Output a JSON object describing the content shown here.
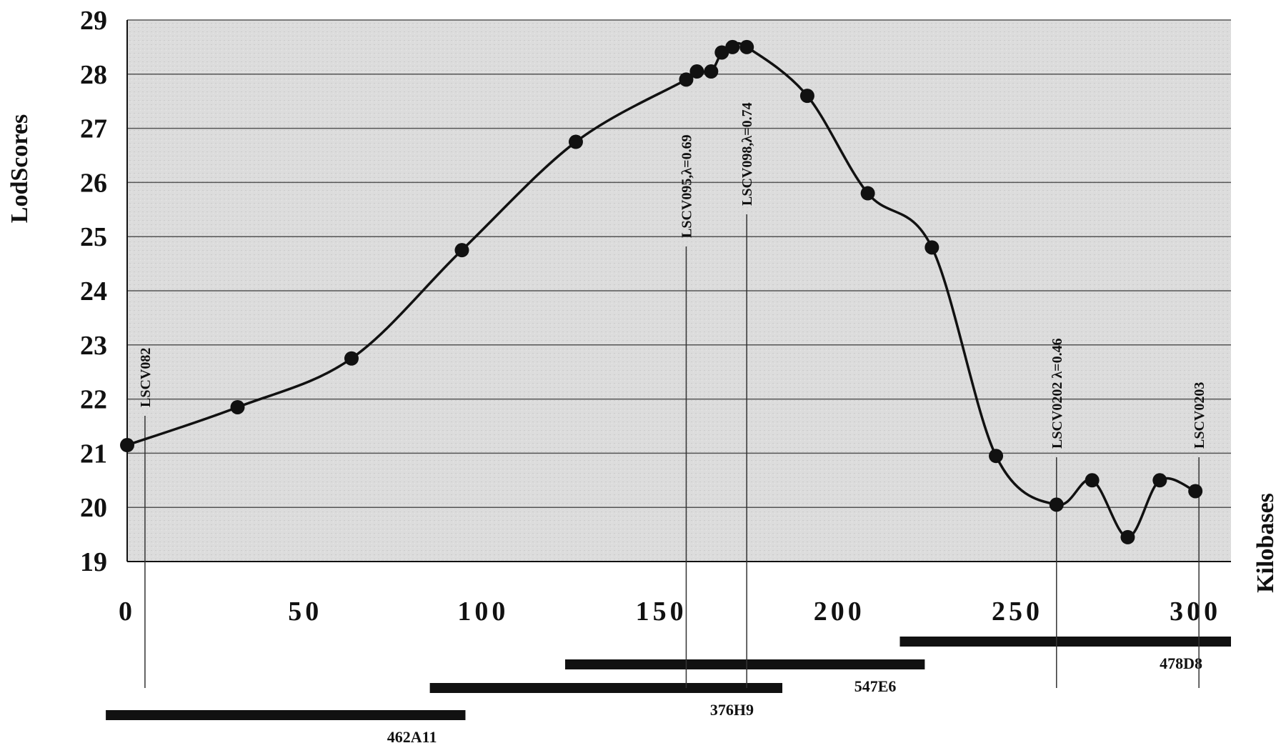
{
  "chart_data": {
    "type": "line",
    "xlabel": "Kilobases",
    "ylabel": "LodScores",
    "xlim": [
      0,
      310
    ],
    "ylim": [
      19,
      29
    ],
    "x_ticks": [
      "0",
      "50",
      "100",
      "150",
      "200",
      "250",
      "300"
    ],
    "y_ticks": [
      "19",
      "20",
      "21",
      "22",
      "23",
      "24",
      "25",
      "26",
      "27",
      "28",
      "29"
    ],
    "grid": true,
    "series": [
      {
        "x": [
          0,
          31,
          63,
          94,
          126,
          157,
          160,
          164,
          167,
          170,
          174,
          191,
          208,
          226,
          244,
          261,
          271,
          281,
          290,
          300
        ],
        "y": [
          21.15,
          21.85,
          22.75,
          24.75,
          26.75,
          27.9,
          28.05,
          28.05,
          28.4,
          28.5,
          28.5,
          27.6,
          25.8,
          24.8,
          20.95,
          20.05,
          20.5,
          19.45,
          20.5,
          20.3
        ]
      }
    ],
    "markers": [
      {
        "label": "LSCV082",
        "x": 5
      },
      {
        "label": "LSCV095,λ=0.69",
        "x": 157
      },
      {
        "label": "LSCV098,λ=0.74",
        "x": 174
      },
      {
        "label": "LSCV0202 λ=0.46",
        "x": 261
      },
      {
        "label": "LSCV0203",
        "x": 301
      }
    ],
    "clones": [
      {
        "label": "462A11",
        "start": -6,
        "end": 95
      },
      {
        "label": "376H9",
        "start": 85,
        "end": 184
      },
      {
        "label": "547E6",
        "start": 123,
        "end": 224
      },
      {
        "label": "478D8",
        "start": 217,
        "end": 310
      }
    ]
  }
}
